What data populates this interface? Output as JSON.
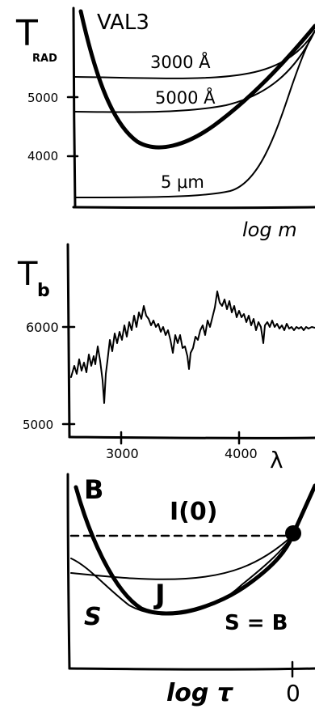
{
  "panels": [
    {
      "id": "top",
      "y_label": "T",
      "y_label_sub": "RAD",
      "model_label": "VAL3",
      "curve_labels": [
        "3000 Å",
        "5000 Å",
        "5 μm"
      ],
      "y_ticks": [
        "5000",
        "4000"
      ],
      "x_label": "log m"
    },
    {
      "id": "middle",
      "y_label": "T",
      "y_label_sub": "b",
      "y_ticks": [
        "6000",
        "5000"
      ],
      "x_ticks": [
        "3000",
        "4000"
      ],
      "x_label": "λ"
    },
    {
      "id": "bottom",
      "labels": [
        "B",
        "I(0)",
        "J",
        "S",
        "S = B"
      ],
      "x_label": "log τ",
      "x_tick": "0"
    }
  ]
}
